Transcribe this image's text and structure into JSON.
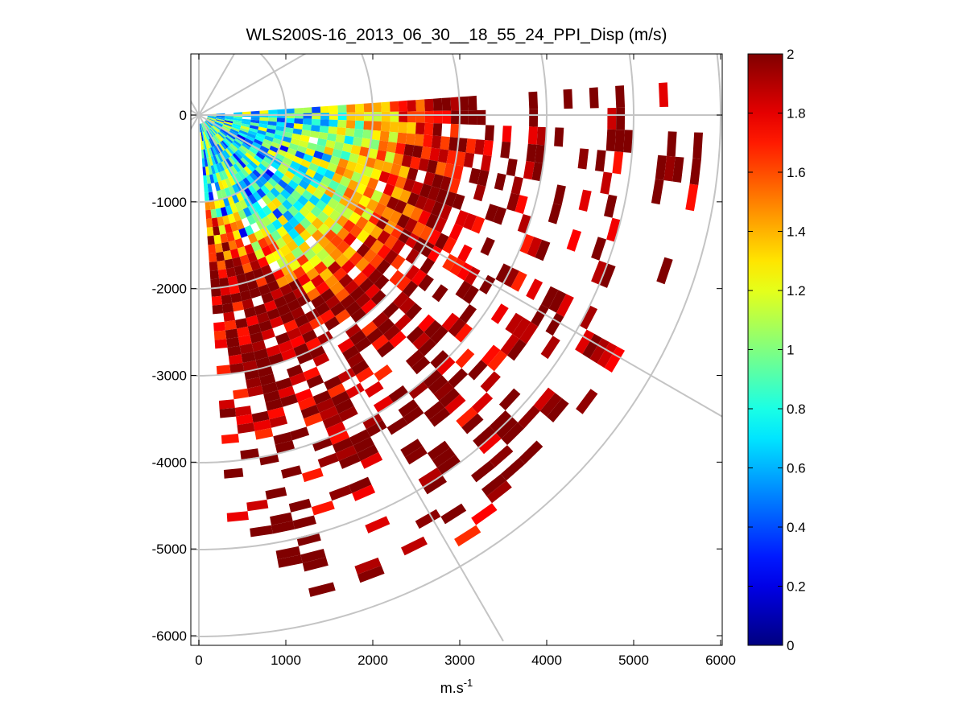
{
  "chart_data": {
    "type": "heatmap",
    "subtype": "polar PPI sector plot (Doppler lidar dispersion)",
    "title": "WLS200S-16_2013_06_30__18_55_24_PPI_Disp (m/s)",
    "xlabel": "m.s",
    "xlabel_superscript": "-1",
    "ylabel": "",
    "xlim": [
      0,
      6000
    ],
    "ylim": [
      -6000,
      500
    ],
    "xticks": [
      0,
      1000,
      2000,
      3000,
      4000,
      5000,
      6000
    ],
    "yticks": [
      0,
      -1000,
      -2000,
      -3000,
      -4000,
      -5000,
      -6000
    ],
    "grid": true,
    "grid_circles_radius": [
      1000,
      2000,
      3000,
      4000,
      5000,
      6000
    ],
    "grid_spokes_deg": [
      0,
      30,
      60,
      90,
      120,
      150,
      180,
      210,
      240,
      270,
      300,
      330
    ],
    "sector": {
      "azimuth_start_deg": 4,
      "azimuth_end_deg": -84,
      "azimuth_step_deg": 3,
      "range_start_m": 100,
      "range_end_m": 5800,
      "range_gate_m": 100
    },
    "colorbar": {
      "colormap": "jet",
      "min": 0,
      "max": 2,
      "ticks": [
        "0",
        "0.2",
        "0.4",
        "0.6",
        "0.8",
        "1",
        "1.2",
        "1.4",
        "1.6",
        "1.8",
        "2"
      ]
    },
    "value_profile": {
      "range_m": [
        100,
        1000,
        1500,
        2000,
        2500,
        3000,
        3500,
        4000,
        4500,
        5000,
        5800
      ],
      "typical_dispersion_m_s": [
        0.85,
        0.8,
        0.95,
        1.3,
        1.75,
        2.0,
        2.0,
        2.0,
        2.0,
        2.0,
        2.0
      ],
      "note_south_sector": "values reach 2 (saturated) closer to the lidar toward the south (-60 to -84 deg)"
    },
    "missing_data_fraction_by_range": {
      "range_m": [
        100,
        2500,
        3000,
        3500,
        4000,
        4500,
        5000,
        5800
      ],
      "fraction": [
        0.0,
        0.05,
        0.3,
        0.5,
        0.6,
        0.7,
        0.8,
        0.85
      ]
    }
  }
}
